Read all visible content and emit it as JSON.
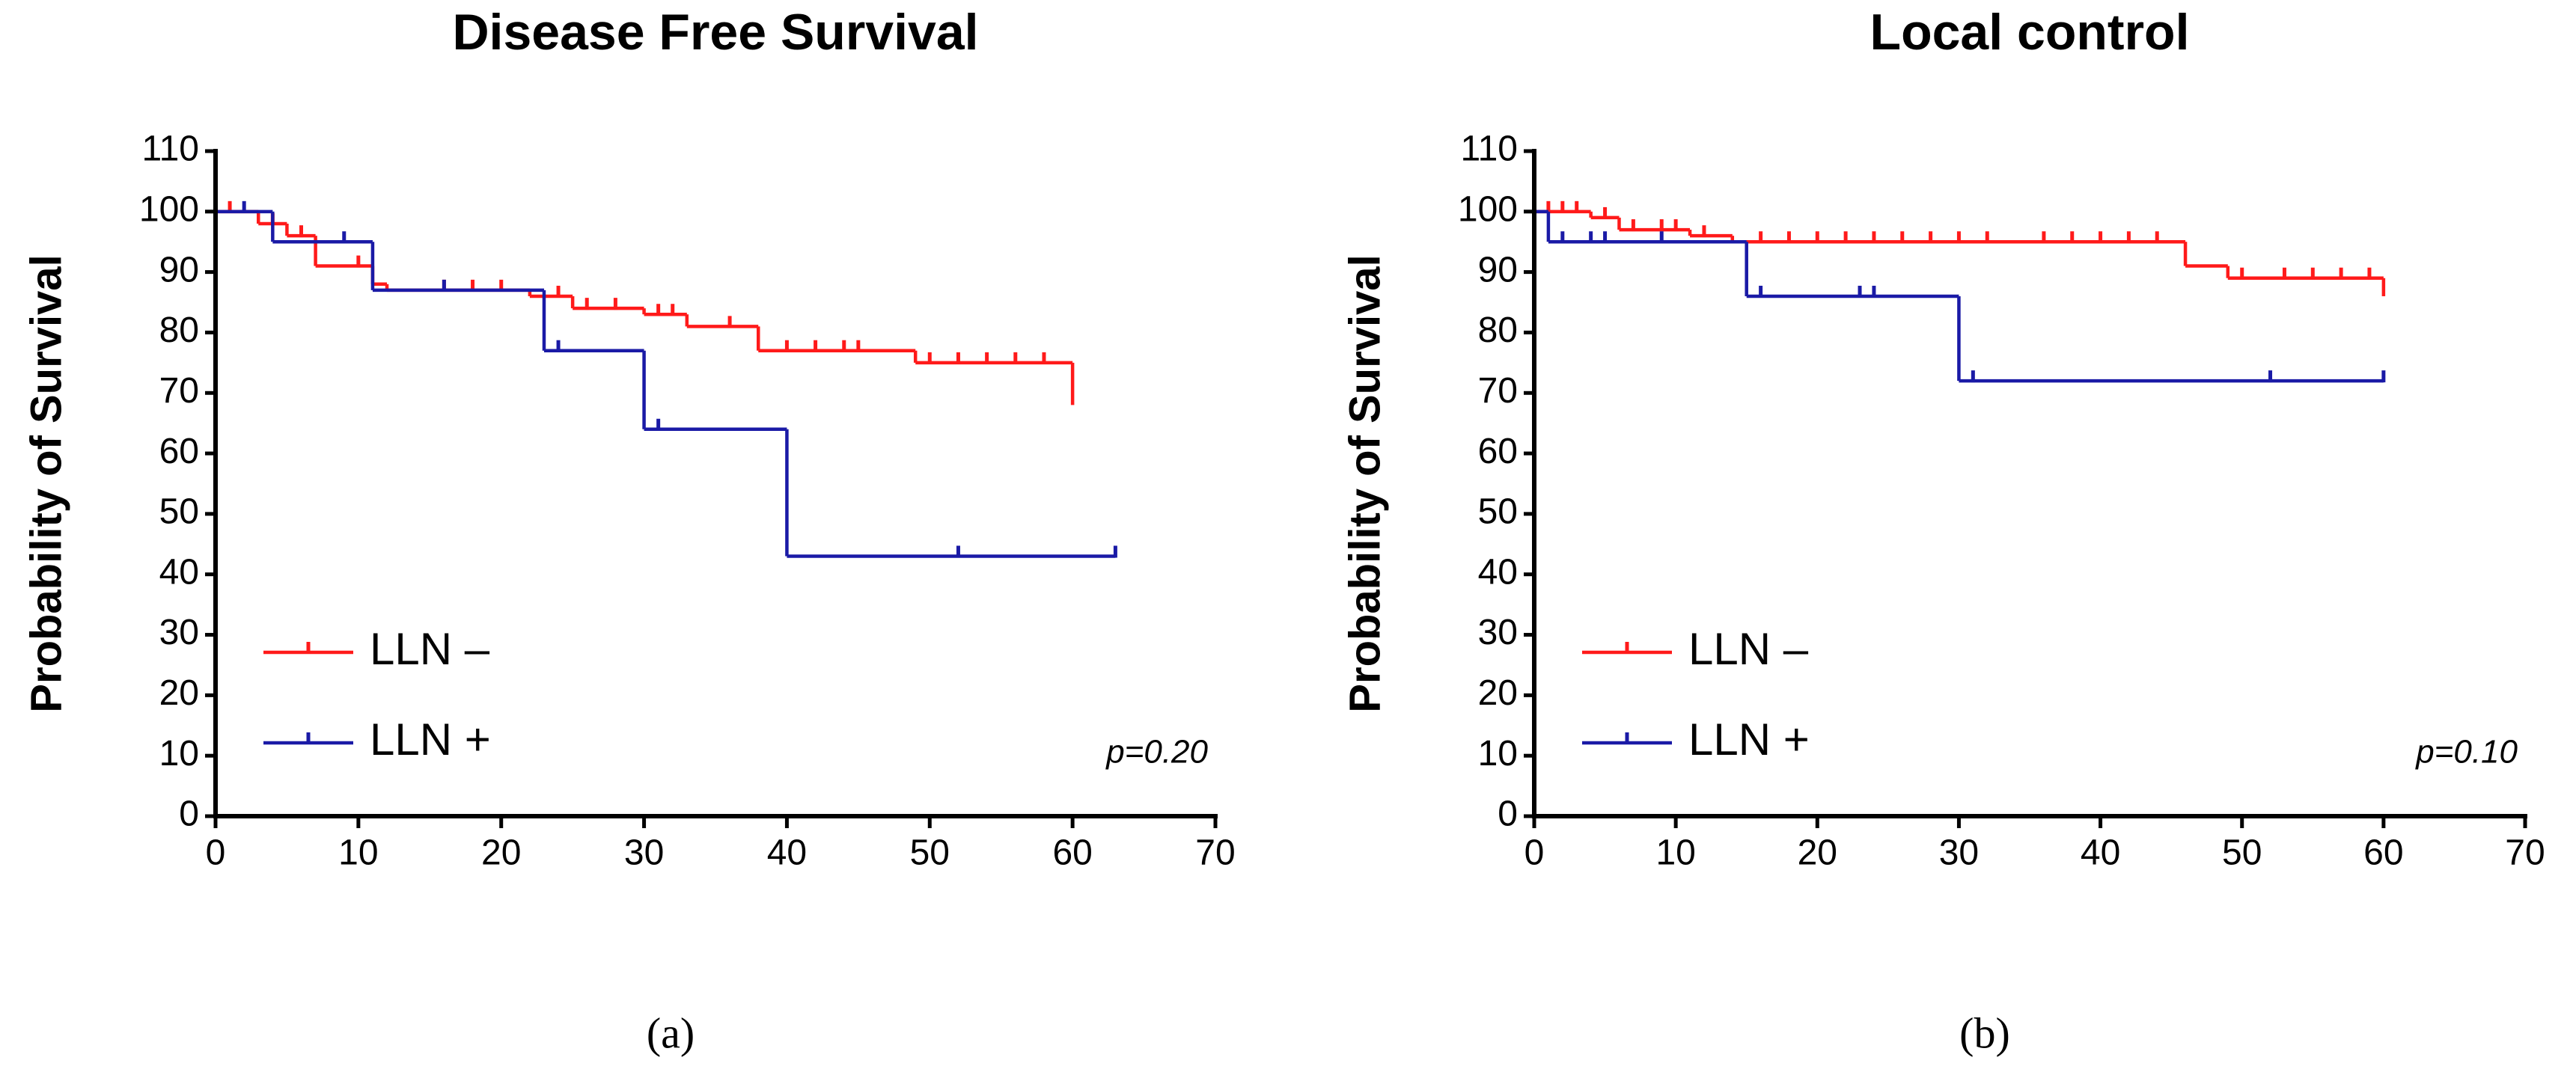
{
  "chart_data": [
    {
      "type": "step",
      "title": "Disease Free Survival",
      "y_label": "Probability of Survival",
      "annotation": "p=0.20",
      "panel_label": "(a)",
      "xlim": [
        0,
        70
      ],
      "xticks": [
        0,
        10,
        20,
        30,
        40,
        50,
        60,
        70
      ],
      "ylim": [
        0,
        110
      ],
      "yticks": [
        0,
        10,
        20,
        30,
        40,
        50,
        60,
        70,
        80,
        90,
        100,
        110
      ],
      "legend": "lower left",
      "series": [
        {
          "name": "LLN –",
          "color": "#ff1a1a",
          "x": [
            0,
            3,
            5,
            7,
            11,
            12,
            22,
            25,
            30,
            33,
            38,
            49,
            60
          ],
          "values": [
            100,
            98,
            96,
            91,
            88,
            87,
            86,
            84,
            83,
            81,
            77,
            75,
            68
          ],
          "censor_x": [
            1,
            4,
            6,
            10,
            16,
            18,
            20,
            24,
            26,
            28,
            31,
            32,
            36,
            40,
            42,
            44,
            45,
            50,
            52,
            54,
            56,
            58
          ],
          "censor_values": [
            100,
            98,
            96,
            91,
            87,
            87,
            87,
            86,
            84,
            84,
            83,
            83,
            81,
            77,
            77,
            77,
            77,
            75,
            75,
            75,
            75,
            75
          ]
        },
        {
          "name": "LLN +",
          "color": "#1a1aa6",
          "x": [
            0,
            4,
            11,
            23,
            30,
            40,
            63
          ],
          "values": [
            100,
            95,
            87,
            77,
            64,
            43,
            43
          ],
          "censor_x": [
            2,
            9,
            16,
            24,
            31,
            52,
            63
          ],
          "censor_values": [
            100,
            95,
            87,
            77,
            64,
            43,
            43
          ]
        }
      ]
    },
    {
      "type": "step",
      "title": "Local control",
      "y_label": "Probability of Survival",
      "annotation": "p=0.10",
      "panel_label": "(b)",
      "xlim": [
        0,
        70
      ],
      "xticks": [
        0,
        10,
        20,
        30,
        40,
        50,
        60,
        70
      ],
      "ylim": [
        0,
        110
      ],
      "yticks": [
        0,
        10,
        20,
        30,
        40,
        50,
        60,
        70,
        80,
        90,
        100,
        110
      ],
      "legend": "lower left",
      "series": [
        {
          "name": "LLN –",
          "color": "#ff1a1a",
          "x": [
            0,
            4,
            6,
            11,
            14,
            46,
            49,
            60
          ],
          "values": [
            100,
            99,
            97,
            96,
            95,
            91,
            89,
            86
          ],
          "censor_x": [
            1,
            2,
            3,
            5,
            7,
            9,
            10,
            12,
            16,
            18,
            20,
            22,
            24,
            26,
            28,
            30,
            32,
            36,
            38,
            40,
            42,
            44,
            50,
            53,
            55,
            57,
            59
          ],
          "censor_values": [
            100,
            100,
            100,
            99,
            97,
            97,
            97,
            96,
            95,
            95,
            95,
            95,
            95,
            95,
            95,
            95,
            95,
            95,
            95,
            95,
            95,
            95,
            89,
            89,
            89,
            89,
            89
          ]
        },
        {
          "name": "LLN +",
          "color": "#1a1aa6",
          "x": [
            0,
            1,
            15,
            30,
            60
          ],
          "values": [
            100,
            95,
            86,
            72,
            72
          ],
          "censor_x": [
            2,
            4,
            5,
            9,
            16,
            23,
            24,
            31,
            52,
            60
          ],
          "censor_values": [
            95,
            95,
            95,
            95,
            86,
            86,
            86,
            72,
            72,
            72
          ]
        }
      ]
    }
  ]
}
